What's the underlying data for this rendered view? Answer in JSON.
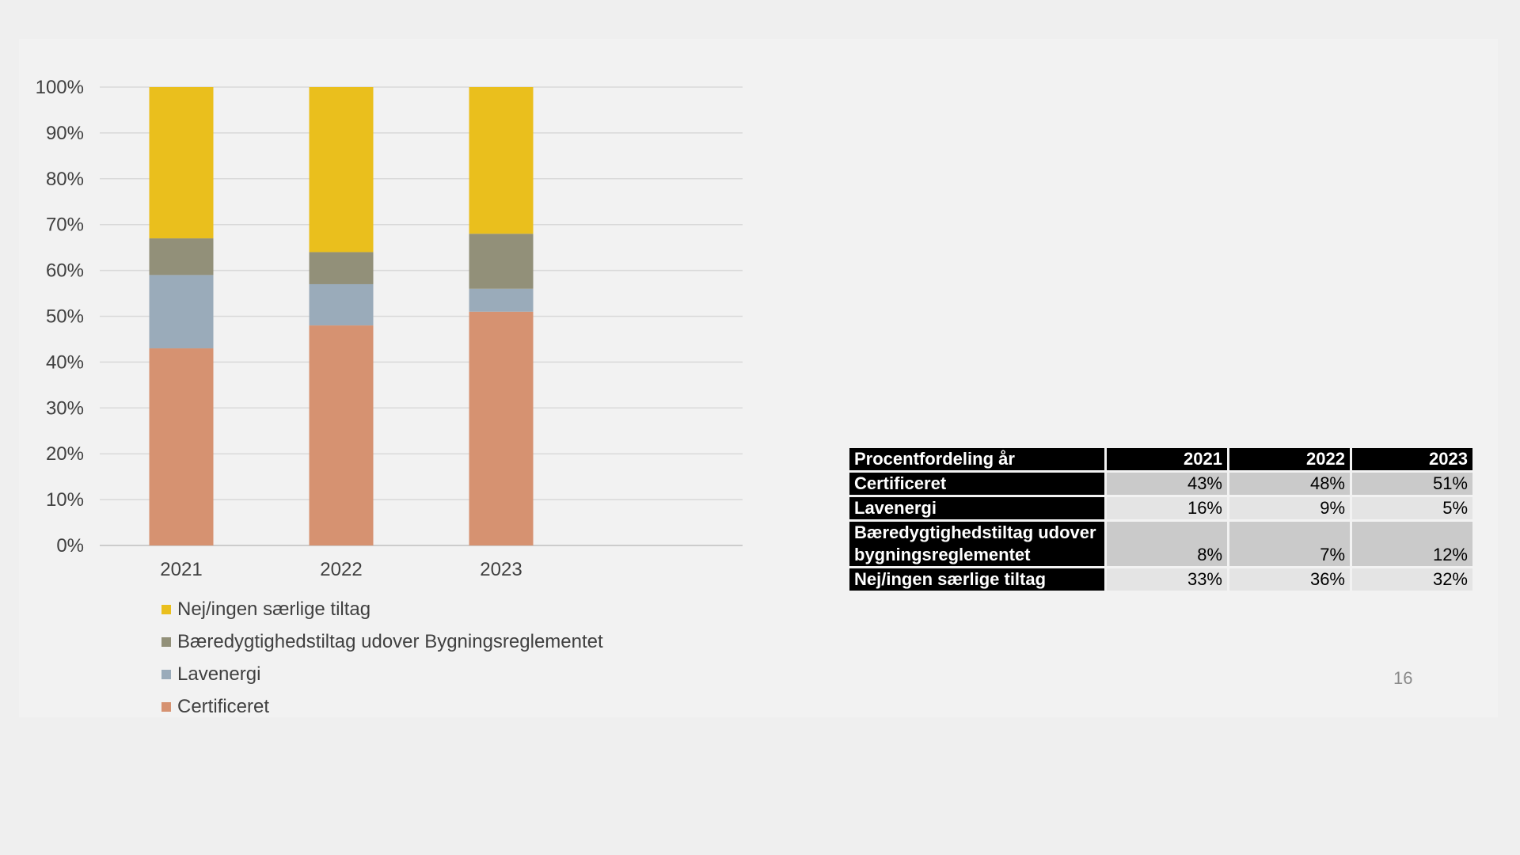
{
  "chart_data": {
    "type": "bar",
    "stacked": true,
    "categories": [
      "2021",
      "2022",
      "2023"
    ],
    "series": [
      {
        "name": "Certificeret",
        "values": [
          43,
          48,
          51
        ],
        "color": "#d69271"
      },
      {
        "name": "Lavenergi",
        "values": [
          16,
          9,
          5
        ],
        "color": "#9aabba"
      },
      {
        "name": "Bæredygtighedstiltag udover Bygningsreglementet",
        "values": [
          8,
          7,
          12
        ],
        "color": "#929079"
      },
      {
        "name": "Nej/ingen særlige tiltag",
        "values": [
          33,
          36,
          32
        ],
        "color": "#eabf1d"
      }
    ],
    "yticks": [
      "0%",
      "10%",
      "20%",
      "30%",
      "40%",
      "50%",
      "60%",
      "70%",
      "80%",
      "90%",
      "100%"
    ],
    "ylim": [
      0,
      100
    ],
    "grid": true,
    "legend_position": "bottom-left"
  },
  "legend": [
    {
      "label": "Nej/ingen særlige tiltag",
      "color": "#eabf1d"
    },
    {
      "label": "Bæredygtighedstiltag udover Bygningsreglementet",
      "color": "#929079"
    },
    {
      "label": "Lavenergi",
      "color": "#9aabba"
    },
    {
      "label": "Certificeret",
      "color": "#d69271"
    }
  ],
  "table": {
    "header": [
      "Procentfordeling år",
      "2021",
      "2022",
      "2023"
    ],
    "rows": [
      {
        "label": "Certificeret",
        "values": [
          "43%",
          "48%",
          "51%"
        ]
      },
      {
        "label": "Lavenergi",
        "values": [
          "16%",
          "9%",
          "5%"
        ]
      },
      {
        "label": "Bæredygtighedstiltag udover bygningsreglementet",
        "values": [
          "8%",
          "7%",
          "12%"
        ]
      },
      {
        "label": "Nej/ingen særlige tiltag",
        "values": [
          "33%",
          "36%",
          "32%"
        ]
      }
    ]
  },
  "page_number": "16"
}
